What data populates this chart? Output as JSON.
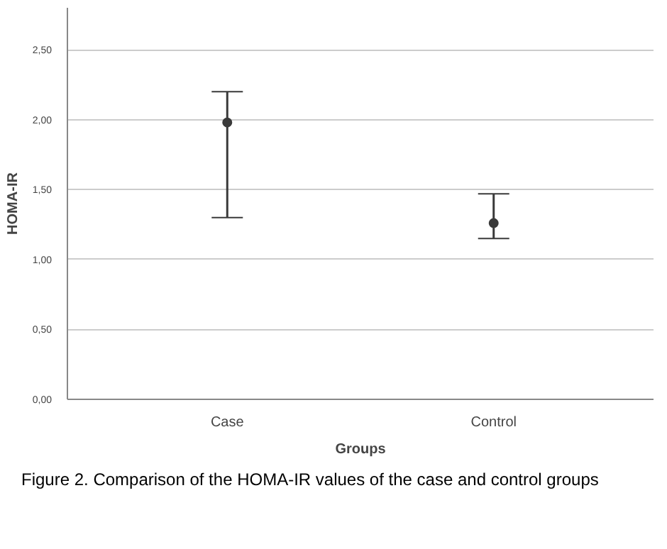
{
  "chart_data": {
    "type": "scatter",
    "xlabel": "Groups",
    "ylabel": "HOMA-IR",
    "categories": [
      "Case",
      "Control"
    ],
    "values": [
      1.98,
      1.26
    ],
    "errors": [
      [
        1.3,
        2.2
      ],
      [
        1.15,
        1.47
      ]
    ],
    "color": "#3a3a3a",
    "marker": "circle",
    "grid": "y",
    "ylim": [
      0,
      2.8
    ],
    "yticks": [
      {
        "value": 0,
        "label": "0,00"
      },
      {
        "value": 0.5,
        "label": "0,50"
      },
      {
        "value": 1,
        "label": "1,00"
      },
      {
        "value": 1.5,
        "label": "1,50"
      },
      {
        "value": 2,
        "label": "2,00"
      },
      {
        "value": 2.5,
        "label": "2,50"
      }
    ],
    "annotations": [
      "Figure 2. Comparison of the HOMA-IR values of the case and control groups"
    ]
  }
}
